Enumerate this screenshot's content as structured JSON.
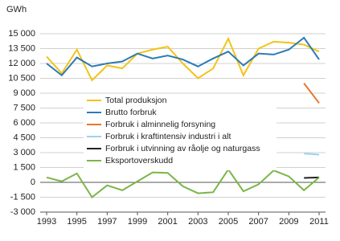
{
  "chart_data": {
    "type": "line",
    "ylabel": "GWh",
    "x": [
      1993,
      1994,
      1995,
      1996,
      1997,
      1998,
      1999,
      2000,
      2001,
      2002,
      2003,
      2004,
      2005,
      2006,
      2007,
      2008,
      2009,
      2010,
      2011
    ],
    "xlim": [
      1993,
      2011
    ],
    "xticks": [
      1993,
      1995,
      1997,
      1999,
      2001,
      2003,
      2005,
      2007,
      2009,
      2011
    ],
    "ylim": [
      -3000,
      15000
    ],
    "yticks": [
      {
        "value": -3000,
        "label": "-3 000"
      },
      {
        "value": -1500,
        "label": "-1 500"
      },
      0,
      {
        "value": 1500,
        "label": "1 500"
      },
      {
        "value": 3000,
        "label": "3 000"
      },
      {
        "value": 4500,
        "label": "4 500"
      },
      {
        "value": 6000,
        "label": "6 000"
      },
      {
        "value": 7500,
        "label": "7 500"
      },
      {
        "value": 9000,
        "label": "9 000"
      },
      {
        "value": 10500,
        "label": "10 500"
      },
      {
        "value": 12000,
        "label": "12 000"
      },
      {
        "value": 13500,
        "label": "13 500"
      },
      {
        "value": 15000,
        "label": "15 000"
      }
    ],
    "grid": true,
    "series": [
      {
        "name": "Total produksjon",
        "color": "#f3c316",
        "values": [
          12700,
          11000,
          13400,
          10300,
          11800,
          11500,
          13000,
          13400,
          13700,
          12000,
          10500,
          11500,
          14500,
          10800,
          13500,
          14200,
          14100,
          13900,
          13200
        ]
      },
      {
        "name": "Brutto forbruk",
        "color": "#2c7bb6",
        "values": [
          12000,
          10800,
          12600,
          11700,
          12000,
          12200,
          13000,
          12500,
          12800,
          12400,
          11700,
          12500,
          13200,
          11800,
          13000,
          12900,
          13400,
          14600,
          12400
        ]
      },
      {
        "name": "Forbruk i alminnelig forsyning",
        "color": "#e8782a",
        "values": [
          null,
          null,
          null,
          null,
          null,
          null,
          null,
          null,
          null,
          null,
          null,
          null,
          null,
          null,
          null,
          null,
          null,
          10000,
          8000
        ]
      },
      {
        "name": "Forbruk i kraftintensiv industri i alt",
        "color": "#9dd3ef",
        "values": [
          null,
          null,
          null,
          null,
          null,
          null,
          null,
          null,
          null,
          null,
          null,
          null,
          null,
          null,
          null,
          null,
          null,
          2900,
          2800
        ]
      },
      {
        "name": "Forbruk i utvinning av råolje og naturgass",
        "color": "#222222",
        "values": [
          null,
          null,
          null,
          null,
          null,
          null,
          null,
          null,
          null,
          null,
          null,
          null,
          null,
          null,
          null,
          null,
          null,
          450,
          500
        ]
      },
      {
        "name": "Eksportoverskudd",
        "color": "#7ab648",
        "values": [
          500,
          100,
          900,
          -1500,
          -300,
          -800,
          100,
          1000,
          950,
          -400,
          -1100,
          -1000,
          1300,
          -900,
          -200,
          1200,
          600,
          -800,
          500
        ]
      }
    ]
  }
}
